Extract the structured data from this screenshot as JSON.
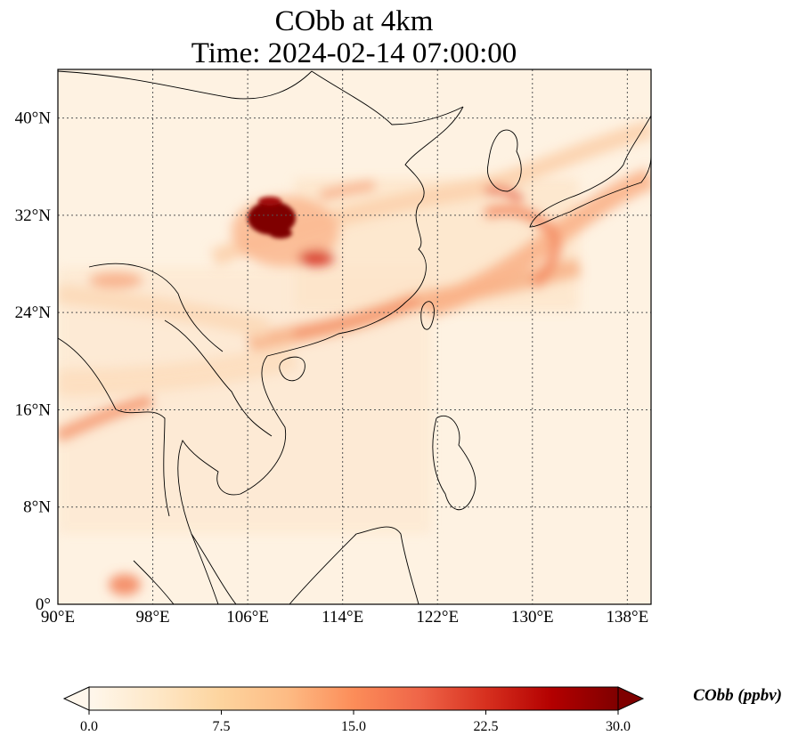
{
  "title": {
    "line1": "CObb at 4km",
    "line2": "Time: 2024-02-14 07:00:00"
  },
  "map": {
    "projection": "PlateCarree",
    "lon_range": [
      90,
      140
    ],
    "lat_range": [
      0,
      44
    ],
    "gridlines": "dotted grey",
    "lon_ticks": [
      {
        "value": 90,
        "label": "90°E"
      },
      {
        "value": 98,
        "label": "98°E"
      },
      {
        "value": 106,
        "label": "106°E"
      },
      {
        "value": 114,
        "label": "114°E"
      },
      {
        "value": 122,
        "label": "122°E"
      },
      {
        "value": 130,
        "label": "130°E"
      },
      {
        "value": 138,
        "label": "138°E"
      }
    ],
    "lat_ticks": [
      {
        "value": 0,
        "label": "0°"
      },
      {
        "value": 8,
        "label": "8°N"
      },
      {
        "value": 16,
        "label": "16°N"
      },
      {
        "value": 24,
        "label": "24°N"
      },
      {
        "value": 32,
        "label": "32°N"
      },
      {
        "value": 40,
        "label": "40°N"
      }
    ],
    "plumes": [
      {
        "name": "central-china-hotspot",
        "lon": 108.0,
        "lat": 32.6,
        "value": 30
      },
      {
        "name": "south-china-coast-band",
        "lon": 116.0,
        "lat": 23.5,
        "value": 15
      },
      {
        "name": "taiwan-to-japan-band",
        "lon": 127.0,
        "lat": 27.0,
        "value": 13
      },
      {
        "name": "korea-japan-band",
        "lon": 127.5,
        "lat": 34.0,
        "value": 16
      },
      {
        "name": "bay-of-bengal-band",
        "lon": 94.0,
        "lat": 15.5,
        "value": 14
      },
      {
        "name": "sumatra-spot",
        "lon": 95.5,
        "lat": 2.0,
        "value": 12
      }
    ]
  },
  "colorbar": {
    "label": "CObb (ppbv)",
    "colormap": "OrRd",
    "min": 0.0,
    "max": 30.0,
    "extend": "both",
    "ticks": [
      "0.0",
      "7.5",
      "15.0",
      "22.5",
      "30.0"
    ],
    "colors": [
      "#fff7ec",
      "#fee8c8",
      "#fdd49e",
      "#fdbb84",
      "#fc8d59",
      "#ef6548",
      "#d7301f",
      "#b30000",
      "#7f0000"
    ]
  }
}
